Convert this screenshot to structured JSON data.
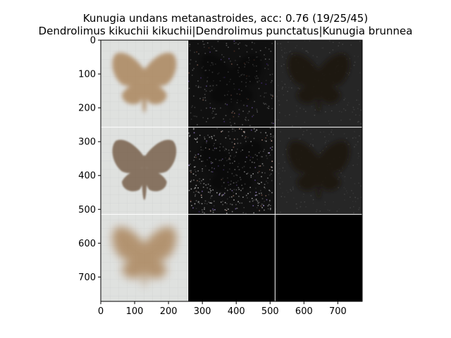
{
  "figure": {
    "title_line1": "Kunugia undans metanastroides, acc: 0.76 (19/25/45)",
    "title_line2": "Dendrolimus kikuchii kikuchii|Dendrolimus punctatus|Kunugia brunnea"
  },
  "axes": {
    "x_ticks": [
      "0",
      "100",
      "200",
      "300",
      "400",
      "500",
      "600",
      "700"
    ],
    "y_ticks": [
      "0",
      "100",
      "200",
      "300",
      "400",
      "500",
      "600",
      "700"
    ],
    "x_range": [
      0,
      772
    ],
    "y_range": [
      772,
      0
    ]
  },
  "grid": {
    "rows": 3,
    "cols": 3,
    "tiles": [
      {
        "row": 0,
        "col": 0,
        "kind": "mean-image",
        "moth": "light"
      },
      {
        "row": 0,
        "col": 1,
        "kind": "noise-dark"
      },
      {
        "row": 0,
        "col": 2,
        "kind": "faint-silhouette"
      },
      {
        "row": 1,
        "col": 0,
        "kind": "specimen-image",
        "moth": "sharp"
      },
      {
        "row": 1,
        "col": 1,
        "kind": "noise-speckle"
      },
      {
        "row": 1,
        "col": 2,
        "kind": "faint-silhouette"
      },
      {
        "row": 2,
        "col": 0,
        "kind": "mean-image",
        "moth": "blurred"
      },
      {
        "row": 2,
        "col": 1,
        "kind": "black"
      },
      {
        "row": 2,
        "col": 2,
        "kind": "black"
      }
    ]
  },
  "colors": {
    "grid_line": "#ffffff",
    "background_light": "#dfe1df",
    "moth_brown": "#a88055",
    "moth_dark": "#6a5038",
    "dark_tile": "#1a1a1a",
    "black_tile": "#000000"
  }
}
